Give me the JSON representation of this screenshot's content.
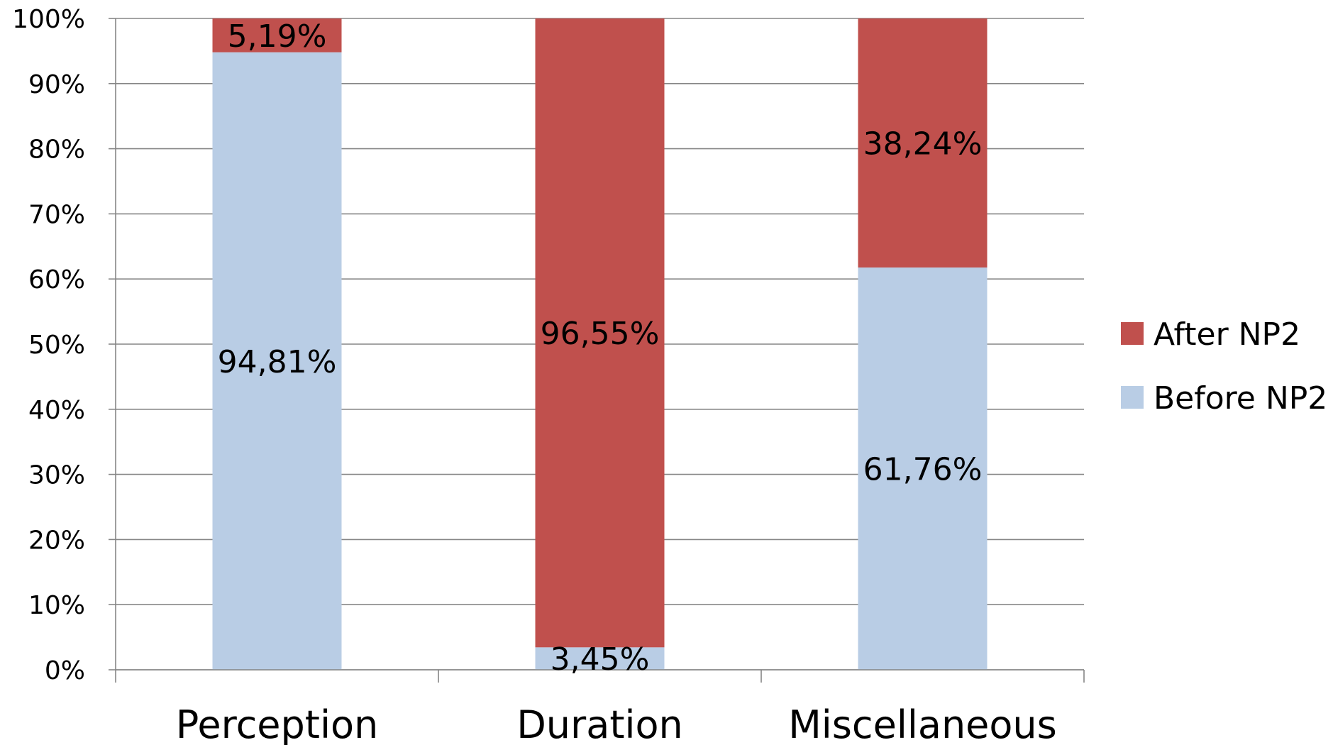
{
  "chart_data": {
    "type": "bar",
    "stacked": true,
    "percent_stacked": true,
    "categories": [
      "Perception",
      "Duration",
      "Miscellaneous"
    ],
    "series": [
      {
        "name": "Before NP2",
        "values": [
          94.81,
          3.45,
          61.76
        ],
        "labels": [
          "94,81%",
          "3,45%",
          "61,76%"
        ],
        "color": "#b9cde5"
      },
      {
        "name": "After NP2",
        "values": [
          5.19,
          96.55,
          38.24
        ],
        "labels": [
          "5,19%",
          "96,55%",
          "38,24%"
        ],
        "color": "#c0504d"
      }
    ],
    "ylim": [
      0,
      100
    ],
    "yticks": [
      0,
      10,
      20,
      30,
      40,
      50,
      60,
      70,
      80,
      90,
      100
    ],
    "ytick_labels": [
      "0%",
      "10%",
      "20%",
      "30%",
      "40%",
      "50%",
      "60%",
      "70%",
      "80%",
      "90%",
      "100%"
    ],
    "grid": true,
    "gridline_color": "#868686",
    "legend_position": "right",
    "legend_order": [
      "After NP2",
      "Before NP2"
    ]
  }
}
